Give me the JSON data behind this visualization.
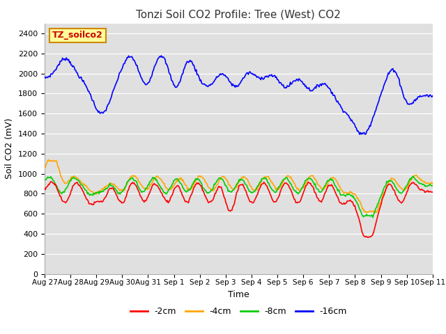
{
  "title": "Tonzi Soil CO2 Profile: Tree (West) CO2",
  "xlabel": "Time",
  "ylabel": "Soil CO2 (mV)",
  "ylim": [
    0,
    2500
  ],
  "yticks": [
    0,
    200,
    400,
    600,
    800,
    1000,
    1200,
    1400,
    1600,
    1800,
    2000,
    2200,
    2400
  ],
  "legend_labels": [
    "-2cm",
    "-4cm",
    "-8cm",
    "-16cm"
  ],
  "legend_colors": [
    "#ff0000",
    "#ffa500",
    "#00cc00",
    "#0000ff"
  ],
  "watermark_text": "TZ_soilco2",
  "watermark_bg": "#ffff99",
  "watermark_border": "#cc8800",
  "background_color": "#e0e0e0",
  "title_color": "#333333",
  "n_points": 500,
  "x_start": 0,
  "x_end": 15,
  "xtick_labels": [
    "Aug 27",
    "Aug 28",
    "Aug 29",
    "Aug 30",
    "Aug 31",
    "Sep 1",
    "Sep 2",
    "Sep 3",
    "Sep 4",
    "Sep 5",
    "Sep 6",
    "Sep 7",
    "Sep 8",
    "Sep 9",
    "Sep 10",
    "Sep 11"
  ],
  "xtick_positions": [
    0,
    1,
    2,
    3,
    4,
    5,
    6,
    7,
    8,
    9,
    10,
    11,
    12,
    13,
    14,
    15
  ]
}
